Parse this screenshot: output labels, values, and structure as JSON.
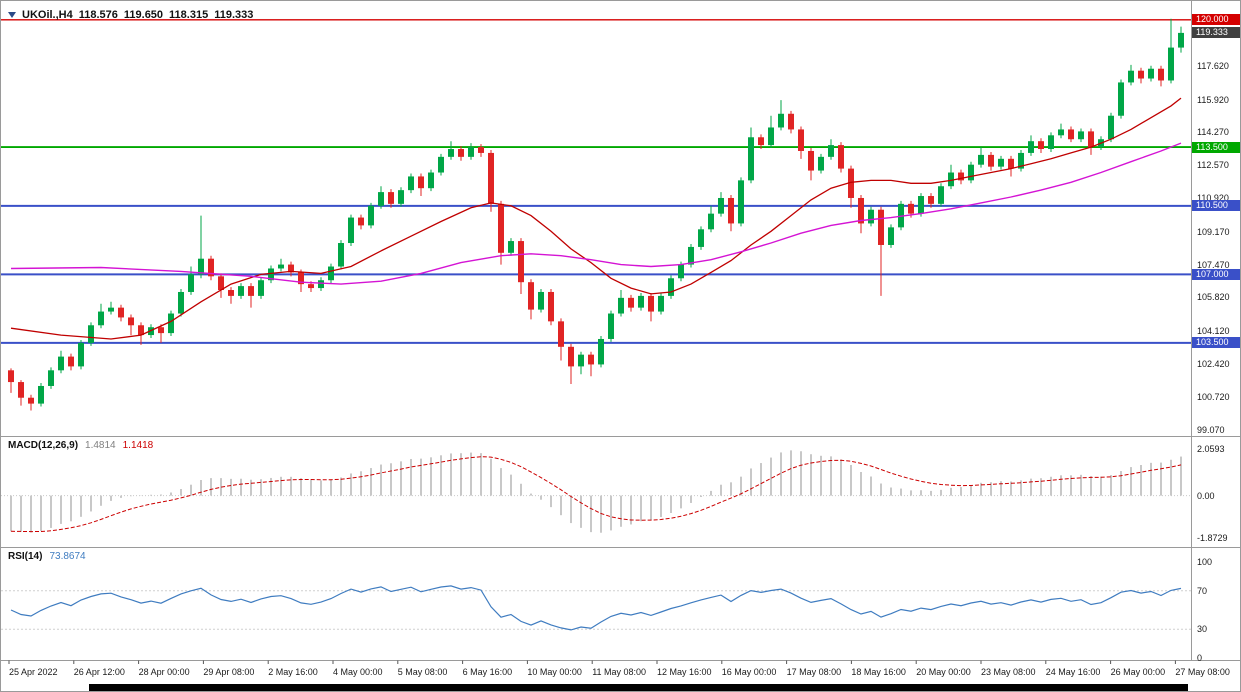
{
  "symbol_info": {
    "symbol": "UKOil.,H4",
    "open": "118.576",
    "high": "119.650",
    "low": "118.315",
    "close": "119.333"
  },
  "colors": {
    "bull": "#00a647",
    "bear": "#e02424",
    "ma_fast": "#c00000",
    "ma_slow": "#d414d4",
    "hline_red": "#d40000",
    "hline_green": "#00a800",
    "hline_blue": "#3a50c8",
    "current_price_badge": "#404040",
    "macd_hist": "#c8c8c8",
    "macd_signal": "#cc0000",
    "rsi_line": "#3f7cc0"
  },
  "chart_data": {
    "type": "candlestick",
    "symbol": "UKOil.",
    "timeframe": "H4",
    "title": "UKOil.,H4",
    "ohlc_current": {
      "open": 118.576,
      "high": 119.65,
      "low": 118.315,
      "close": 119.333
    },
    "ylim": [
      98.95,
      120.55
    ],
    "grid": false,
    "price_ticks": [
      117.62,
      115.92,
      114.27,
      112.57,
      110.92,
      109.17,
      107.47,
      105.82,
      104.12,
      102.42,
      100.72,
      99.07
    ],
    "hlines": [
      {
        "price": 120.0,
        "label": "120.000",
        "color": "#d40000",
        "width": 1.4
      },
      {
        "price": 113.5,
        "label": "113.500",
        "color": "#00a800",
        "width": 1.8
      },
      {
        "price": 110.5,
        "label": "110.500",
        "color": "#3a50c8",
        "width": 2
      },
      {
        "price": 107.0,
        "label": "107.000",
        "color": "#3a50c8",
        "width": 2
      },
      {
        "price": 103.5,
        "label": "103.500",
        "color": "#3a50c8",
        "width": 2
      }
    ],
    "current_price": {
      "value": 119.333,
      "label": "119.333",
      "badge_color": "#404040"
    },
    "time_labels": [
      "25 Apr 2022",
      "26 Apr 12:00",
      "28 Apr 00:00",
      "29 Apr 08:00",
      "2 May 16:00",
      "4 May 00:00",
      "5 May 08:00",
      "6 May 16:00",
      "10 May 00:00",
      "11 May 08:00",
      "12 May 16:00",
      "16 May 00:00",
      "17 May 08:00",
      "18 May 16:00",
      "20 May 00:00",
      "23 May 08:00",
      "24 May 16:00",
      "26 May 00:00",
      "27 May 08:00"
    ],
    "candles": [
      [
        102.1,
        102.2,
        100.95,
        101.5
      ],
      [
        101.5,
        101.6,
        100.3,
        100.7
      ],
      [
        100.7,
        100.85,
        100.05,
        100.4
      ],
      [
        100.4,
        101.45,
        100.25,
        101.3
      ],
      [
        101.3,
        102.25,
        101.15,
        102.1
      ],
      [
        102.1,
        103.1,
        101.95,
        102.8
      ],
      [
        102.8,
        102.95,
        102.1,
        102.3
      ],
      [
        102.3,
        103.65,
        102.15,
        103.5
      ],
      [
        103.5,
        104.55,
        103.35,
        104.4
      ],
      [
        104.4,
        105.5,
        104.25,
        105.1
      ],
      [
        105.1,
        105.6,
        104.95,
        105.3
      ],
      [
        105.3,
        105.45,
        104.6,
        104.8
      ],
      [
        104.8,
        104.95,
        103.9,
        104.4
      ],
      [
        104.4,
        104.55,
        103.4,
        103.9
      ],
      [
        103.9,
        104.45,
        103.75,
        104.3
      ],
      [
        104.3,
        104.45,
        103.5,
        104.0
      ],
      [
        104.0,
        105.15,
        103.85,
        105.0
      ],
      [
        105.0,
        106.25,
        104.85,
        106.1
      ],
      [
        106.1,
        107.4,
        105.95,
        107.0
      ],
      [
        107.0,
        110.0,
        106.8,
        107.8
      ],
      [
        107.8,
        107.95,
        106.7,
        106.9
      ],
      [
        106.9,
        107.05,
        105.8,
        106.2
      ],
      [
        106.2,
        106.35,
        105.5,
        105.9
      ],
      [
        105.9,
        106.55,
        105.75,
        106.4
      ],
      [
        106.4,
        106.55,
        105.3,
        105.9
      ],
      [
        105.9,
        106.85,
        105.75,
        106.7
      ],
      [
        106.7,
        107.45,
        106.55,
        107.3
      ],
      [
        107.3,
        107.8,
        107.15,
        107.5
      ],
      [
        107.5,
        107.65,
        106.9,
        107.1
      ],
      [
        107.1,
        107.25,
        106.1,
        106.5
      ],
      [
        106.5,
        106.65,
        106.1,
        106.3
      ],
      [
        106.3,
        106.85,
        106.15,
        106.7
      ],
      [
        106.7,
        107.55,
        106.55,
        107.4
      ],
      [
        107.4,
        108.75,
        107.25,
        108.6
      ],
      [
        108.6,
        110.05,
        108.45,
        109.9
      ],
      [
        109.9,
        110.05,
        109.3,
        109.5
      ],
      [
        109.5,
        110.65,
        109.35,
        110.5
      ],
      [
        110.5,
        111.5,
        110.35,
        111.2
      ],
      [
        111.2,
        111.35,
        110.4,
        110.6
      ],
      [
        110.6,
        111.45,
        110.45,
        111.3
      ],
      [
        111.3,
        112.15,
        111.15,
        112.0
      ],
      [
        112.0,
        112.15,
        111.0,
        111.4
      ],
      [
        111.4,
        112.35,
        111.25,
        112.2
      ],
      [
        112.2,
        113.15,
        112.05,
        113.0
      ],
      [
        113.0,
        113.8,
        112.85,
        113.4
      ],
      [
        113.4,
        113.55,
        112.8,
        113.0
      ],
      [
        113.0,
        113.7,
        112.85,
        113.5
      ],
      [
        113.5,
        113.65,
        113.0,
        113.2
      ],
      [
        113.2,
        113.35,
        110.2,
        110.6
      ],
      [
        110.6,
        110.75,
        107.5,
        108.1
      ],
      [
        108.1,
        108.85,
        107.95,
        108.7
      ],
      [
        108.7,
        108.85,
        106.0,
        106.6
      ],
      [
        106.6,
        106.75,
        104.7,
        105.2
      ],
      [
        105.2,
        106.25,
        105.05,
        106.1
      ],
      [
        106.1,
        106.25,
        104.4,
        104.6
      ],
      [
        104.6,
        104.75,
        102.6,
        103.3
      ],
      [
        103.3,
        103.45,
        101.4,
        102.3
      ],
      [
        102.3,
        103.05,
        101.9,
        102.9
      ],
      [
        102.9,
        103.05,
        101.8,
        102.4
      ],
      [
        102.4,
        103.85,
        102.25,
        103.7
      ],
      [
        103.7,
        105.15,
        103.55,
        105.0
      ],
      [
        105.0,
        106.2,
        104.85,
        105.8
      ],
      [
        105.8,
        105.95,
        105.1,
        105.3
      ],
      [
        105.3,
        106.05,
        105.15,
        105.9
      ],
      [
        105.9,
        106.05,
        104.6,
        105.1
      ],
      [
        105.1,
        106.05,
        104.95,
        105.9
      ],
      [
        105.9,
        106.95,
        105.75,
        106.8
      ],
      [
        106.8,
        107.65,
        106.65,
        107.5
      ],
      [
        107.5,
        108.55,
        107.35,
        108.4
      ],
      [
        108.4,
        109.45,
        108.25,
        109.3
      ],
      [
        109.3,
        110.5,
        109.15,
        110.1
      ],
      [
        110.1,
        111.2,
        109.95,
        110.9
      ],
      [
        110.9,
        111.05,
        109.2,
        109.6
      ],
      [
        109.6,
        111.95,
        109.45,
        111.8
      ],
      [
        111.8,
        114.5,
        111.65,
        114.0
      ],
      [
        114.0,
        114.15,
        113.4,
        113.6
      ],
      [
        113.6,
        115.1,
        113.45,
        114.5
      ],
      [
        114.5,
        115.9,
        114.35,
        115.2
      ],
      [
        115.2,
        115.35,
        114.2,
        114.4
      ],
      [
        114.4,
        114.55,
        112.9,
        113.3
      ],
      [
        113.3,
        113.45,
        111.8,
        112.3
      ],
      [
        112.3,
        113.15,
        112.15,
        113.0
      ],
      [
        113.0,
        113.9,
        112.85,
        113.6
      ],
      [
        113.6,
        113.75,
        112.2,
        112.4
      ],
      [
        112.4,
        112.55,
        110.4,
        110.9
      ],
      [
        110.9,
        111.05,
        109.1,
        109.6
      ],
      [
        109.6,
        110.45,
        109.45,
        110.3
      ],
      [
        110.3,
        110.45,
        105.9,
        108.5
      ],
      [
        108.5,
        109.55,
        108.35,
        109.4
      ],
      [
        109.4,
        110.75,
        109.25,
        110.6
      ],
      [
        110.6,
        110.75,
        109.9,
        110.1
      ],
      [
        110.1,
        111.15,
        109.95,
        111.0
      ],
      [
        111.0,
        111.15,
        110.4,
        110.6
      ],
      [
        110.6,
        111.65,
        110.45,
        111.5
      ],
      [
        111.5,
        112.6,
        111.35,
        112.2
      ],
      [
        112.2,
        112.35,
        111.6,
        111.8
      ],
      [
        111.8,
        112.75,
        111.65,
        112.6
      ],
      [
        112.6,
        113.5,
        112.45,
        113.1
      ],
      [
        113.1,
        113.25,
        112.3,
        112.5
      ],
      [
        112.5,
        113.05,
        112.35,
        112.9
      ],
      [
        112.9,
        113.05,
        112.0,
        112.4
      ],
      [
        112.4,
        113.35,
        112.25,
        113.2
      ],
      [
        113.2,
        114.1,
        113.05,
        113.8
      ],
      [
        113.8,
        113.95,
        113.2,
        113.4
      ],
      [
        113.4,
        114.25,
        113.25,
        114.1
      ],
      [
        114.1,
        114.7,
        113.95,
        114.4
      ],
      [
        114.4,
        114.55,
        113.75,
        113.9
      ],
      [
        113.9,
        114.45,
        113.75,
        114.3
      ],
      [
        114.3,
        114.45,
        113.1,
        113.5
      ],
      [
        113.5,
        114.05,
        113.35,
        113.9
      ],
      [
        113.9,
        115.25,
        113.75,
        115.1
      ],
      [
        115.1,
        116.95,
        114.95,
        116.8
      ],
      [
        116.8,
        117.7,
        116.65,
        117.4
      ],
      [
        117.4,
        117.55,
        116.75,
        117.0
      ],
      [
        117.0,
        117.65,
        116.85,
        117.5
      ],
      [
        117.5,
        117.65,
        116.6,
        116.9
      ],
      [
        116.9,
        120.05,
        116.75,
        118.58
      ],
      [
        118.58,
        119.65,
        118.32,
        119.33
      ]
    ],
    "ma_fast": {
      "name": "MA fast (red)",
      "color": "#c00000",
      "points": [
        [
          0,
          104.25
        ],
        [
          5,
          103.9
        ],
        [
          10,
          103.7
        ],
        [
          13,
          103.9
        ],
        [
          16,
          104.6
        ],
        [
          19,
          105.6
        ],
        [
          22,
          106.5
        ],
        [
          25,
          107.0
        ],
        [
          28,
          107.15
        ],
        [
          31,
          107.05
        ],
        [
          34,
          107.4
        ],
        [
          37,
          108.2
        ],
        [
          40,
          108.95
        ],
        [
          43,
          109.7
        ],
        [
          46,
          110.4
        ],
        [
          48,
          110.65
        ],
        [
          50,
          110.5
        ],
        [
          52,
          110.0
        ],
        [
          54,
          109.2
        ],
        [
          56,
          108.3
        ],
        [
          58,
          107.6
        ],
        [
          60,
          106.8
        ],
        [
          62,
          106.3
        ],
        [
          64,
          106.0
        ],
        [
          66,
          106.1
        ],
        [
          68,
          106.5
        ],
        [
          70,
          107.1
        ],
        [
          72,
          107.7
        ],
        [
          74,
          108.5
        ],
        [
          76,
          109.2
        ],
        [
          78,
          110.0
        ],
        [
          80,
          110.8
        ],
        [
          82,
          111.4
        ],
        [
          84,
          111.7
        ],
        [
          86,
          111.8
        ],
        [
          88,
          111.8
        ],
        [
          90,
          111.65
        ],
        [
          92,
          111.65
        ],
        [
          94,
          111.8
        ],
        [
          96,
          112.0
        ],
        [
          98,
          112.2
        ],
        [
          100,
          112.4
        ],
        [
          102,
          112.65
        ],
        [
          104,
          112.9
        ],
        [
          106,
          113.2
        ],
        [
          108,
          113.5
        ],
        [
          110,
          113.9
        ],
        [
          112,
          114.4
        ],
        [
          114,
          115.0
        ],
        [
          116,
          115.6
        ],
        [
          117,
          116.0
        ]
      ]
    },
    "ma_slow": {
      "name": "MA slow (magenta)",
      "color": "#d414d4",
      "points": [
        [
          0,
          107.3
        ],
        [
          9,
          107.35
        ],
        [
          17,
          107.15
        ],
        [
          24,
          106.9
        ],
        [
          29,
          106.6
        ],
        [
          33,
          106.5
        ],
        [
          37,
          106.65
        ],
        [
          41,
          107.05
        ],
        [
          45,
          107.6
        ],
        [
          49,
          107.95
        ],
        [
          52,
          108.05
        ],
        [
          55,
          107.95
        ],
        [
          58,
          107.75
        ],
        [
          61,
          107.5
        ],
        [
          64,
          107.4
        ],
        [
          67,
          107.5
        ],
        [
          70,
          107.75
        ],
        [
          73,
          108.15
        ],
        [
          76,
          108.6
        ],
        [
          79,
          109.1
        ],
        [
          82,
          109.5
        ],
        [
          85,
          109.75
        ],
        [
          88,
          109.9
        ],
        [
          91,
          110.1
        ],
        [
          94,
          110.35
        ],
        [
          97,
          110.65
        ],
        [
          100,
          110.95
        ],
        [
          103,
          111.3
        ],
        [
          106,
          111.7
        ],
        [
          109,
          112.2
        ],
        [
          112,
          112.75
        ],
        [
          115,
          113.3
        ],
        [
          117,
          113.7
        ]
      ]
    },
    "macd": {
      "label": "MACD(12,26,9)",
      "value_main": "1.4814",
      "value_signal": "1.1418",
      "axis_ticks": [
        {
          "v": 2.0593,
          "label": "2.0593"
        },
        {
          "v": 0,
          "label": "0.00"
        },
        {
          "v": -1.8729,
          "label": "-1.8729"
        }
      ],
      "hist_color": "#c8c8c8",
      "signal_color": "#cc0000"
    },
    "rsi": {
      "label": "RSI(14)",
      "value": "73.8674",
      "color": "#3f7cc0",
      "axis_ticks": [
        {
          "v": 100,
          "label": "100"
        },
        {
          "v": 70,
          "label": "70"
        },
        {
          "v": 30,
          "label": "30"
        },
        {
          "v": 0,
          "label": "0"
        }
      ],
      "levels": [
        70,
        30
      ]
    }
  }
}
